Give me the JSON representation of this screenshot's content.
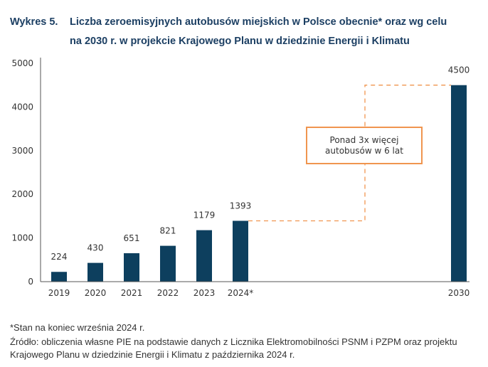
{
  "title": {
    "number": "Wykres 5.",
    "line1": "Liczba zeroemisyjnych autobusów miejskich w Polsce obecnie* oraz wg celu",
    "line2": "na 2030 r. w projekcie Krajowego Planu w dziedzinie Energii i Klimatu"
  },
  "callout": {
    "line1": "Ponad 3x więcej",
    "line2": "autobusów w 6 lat"
  },
  "notes": {
    "footnote": "*Stan na koniec września 2024 r.",
    "source": "Źródło: obliczenia własne PIE na podstawie danych z Licznika Elektromobilności PSNM i PZPM oraz projektu Krajowego Planu w dziedzinie Energii i Klimatu z października 2024 r."
  },
  "colors": {
    "bar": "#0d3f5e",
    "accent": "#f0954f",
    "title": "#1c3f63"
  },
  "chart_data": {
    "type": "bar",
    "title": "Liczba zeroemisyjnych autobusów miejskich w Polsce obecnie* oraz wg celu na 2030 r. w projekcie Krajowego Planu w dziedzinie Energii i Klimatu",
    "categories": [
      "2019",
      "2020",
      "2021",
      "2022",
      "2023",
      "2024*",
      "2030"
    ],
    "values": [
      224,
      430,
      651,
      821,
      1179,
      1393,
      4500
    ],
    "data_labels": [
      "224",
      "430",
      "651",
      "821",
      "1179",
      "1393",
      "4500"
    ],
    "xlabel": "",
    "ylabel": "",
    "ylim": [
      0,
      5000
    ],
    "yticks": [
      0,
      1000,
      2000,
      3000,
      4000,
      5000
    ],
    "grid": false,
    "legend": "none",
    "annotation": "Ponad 3x więcej autobusów w 6 lat",
    "annotation_connects": [
      "2024*",
      "2030"
    ]
  }
}
